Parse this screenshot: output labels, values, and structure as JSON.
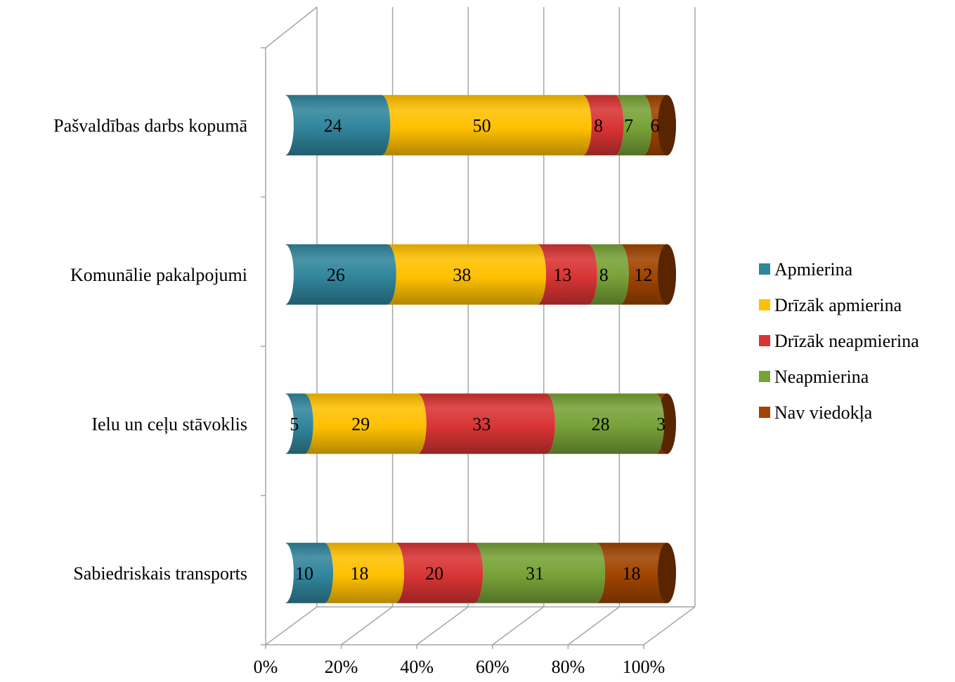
{
  "chart_data": {
    "type": "bar",
    "orientation": "horizontal",
    "stacked": "percent",
    "style": "3d-cylinder",
    "categories": [
      "Pašvaldības darbs kopumā",
      "Komunālie pakalpojumi",
      "Ielu un ceļu stāvoklis",
      "Sabiedriskais transports"
    ],
    "series": [
      {
        "name": "Apmierina",
        "color": "#31859c",
        "values": [
          24,
          26,
          5,
          10
        ]
      },
      {
        "name": "Drīzāk apmierina",
        "color": "#ffc000",
        "values": [
          50,
          38,
          29,
          18
        ]
      },
      {
        "name": "Drīzāk neapmierina",
        "color": "#d83434",
        "values": [
          8,
          13,
          33,
          20
        ]
      },
      {
        "name": "Neapmierina",
        "color": "#77a237",
        "values": [
          7,
          8,
          28,
          31
        ]
      },
      {
        "name": "Nav viedokļa",
        "color": "#a04400",
        "values": [
          6,
          12,
          3,
          18
        ]
      }
    ],
    "x_ticks": [
      "0%",
      "20%",
      "40%",
      "60%",
      "80%",
      "100%"
    ],
    "xlim": [
      0,
      100
    ],
    "grid": true,
    "legend": "right"
  }
}
